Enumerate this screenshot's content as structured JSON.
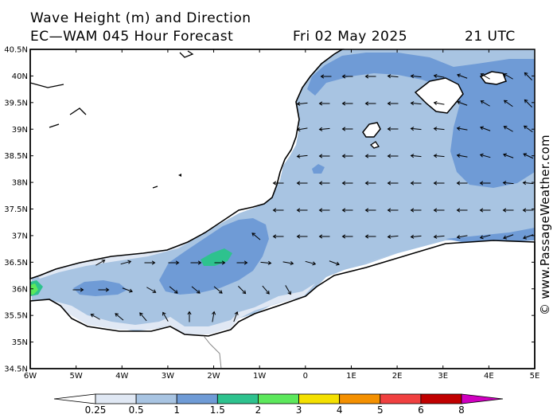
{
  "header": {
    "title": "Wave Height (m) and Direction",
    "subtitle": "EC—WAM 045 Hour Forecast",
    "date": "Fri 02 May 2025",
    "time": "21 UTC"
  },
  "credit": "© www.PassageWeather.com",
  "map": {
    "lat_labels": [
      "40.5N",
      "40N",
      "39.5N",
      "39N",
      "38.5N",
      "38N",
      "37.5N",
      "37N",
      "36.5N",
      "36N",
      "35.5N",
      "35N",
      "34.5N"
    ],
    "lon_labels": [
      "6W",
      "5W",
      "4W",
      "3W",
      "2W",
      "1W",
      "0",
      "1E",
      "2E",
      "3E",
      "4E",
      "5E"
    ],
    "wave_direction": "westward"
  },
  "legend": {
    "levels": [
      "0.25",
      "0.5",
      "1",
      "1.5",
      "2",
      "3",
      "4",
      "5",
      "6",
      "8"
    ],
    "colors": [
      "#ffffff",
      "#e0e8f4",
      "#a8c4e2",
      "#6f9bd6",
      "#2ec28e",
      "#5ce85c",
      "#f4e000",
      "#f49000",
      "#f04040",
      "#c00000",
      "#d000c0"
    ]
  }
}
